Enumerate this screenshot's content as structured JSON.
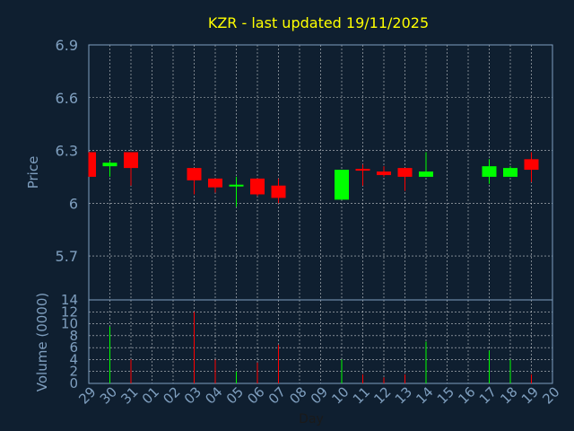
{
  "chart_data": {
    "type": "candlestick",
    "title": "KZR - last updated 19/11/2025",
    "xlabel": "Day",
    "colors": {
      "background": "#0f1f30",
      "text": "#7f9fbf",
      "title": "#ffff00",
      "up": "#00ff00",
      "down": "#ff0000",
      "grid": "#ffffff",
      "axis": "#7f9fbf"
    },
    "x_tick_labels": [
      "29",
      "30",
      "31",
      "01",
      "02",
      "03",
      "04",
      "05",
      "06",
      "07",
      "08",
      "09",
      "10",
      "11",
      "12",
      "13",
      "14",
      "15",
      "16",
      "17",
      "18",
      "19",
      "20"
    ],
    "price_panel": {
      "ylabel": "Price",
      "ylim": [
        5.45,
        6.9
      ],
      "y_ticks": [
        5.7,
        6.0,
        6.3,
        6.6,
        6.9
      ],
      "y_tick_labels": [
        "5.7",
        "6",
        "6.3",
        "6.6",
        "6.9"
      ],
      "grid": true,
      "candles": [
        {
          "day": "29",
          "open": 6.29,
          "high": 6.29,
          "low": 6.15,
          "close": 6.15
        },
        {
          "day": "30",
          "open": 6.21,
          "high": 6.24,
          "low": 6.15,
          "close": 6.23
        },
        {
          "day": "31",
          "open": 6.29,
          "high": 6.29,
          "low": 6.1,
          "close": 6.2
        },
        {
          "day": "03",
          "open": 6.2,
          "high": 6.2,
          "low": 6.05,
          "close": 6.13
        },
        {
          "day": "04",
          "open": 6.14,
          "high": 6.14,
          "low": 6.06,
          "close": 6.09
        },
        {
          "day": "05",
          "open": 6.1,
          "high": 6.15,
          "low": 5.98,
          "close": 6.1
        },
        {
          "day": "06",
          "open": 6.14,
          "high": 6.14,
          "low": 6.04,
          "close": 6.05
        },
        {
          "day": "07",
          "open": 6.1,
          "high": 6.14,
          "low": 6.0,
          "close": 6.03
        },
        {
          "day": "10",
          "open": 6.02,
          "high": 6.19,
          "low": 6.02,
          "close": 6.19
        },
        {
          "day": "11",
          "open": 6.19,
          "high": 6.22,
          "low": 6.1,
          "close": 6.18
        },
        {
          "day": "12",
          "open": 6.18,
          "high": 6.21,
          "low": 6.15,
          "close": 6.16
        },
        {
          "day": "13",
          "open": 6.2,
          "high": 6.2,
          "low": 6.07,
          "close": 6.15
        },
        {
          "day": "14",
          "open": 6.15,
          "high": 6.29,
          "low": 6.15,
          "close": 6.18
        },
        {
          "day": "17",
          "open": 6.15,
          "high": 6.25,
          "low": 6.11,
          "close": 6.21
        },
        {
          "day": "18",
          "open": 6.15,
          "high": 6.21,
          "low": 6.15,
          "close": 6.2
        },
        {
          "day": "19",
          "open": 6.25,
          "high": 6.29,
          "low": 6.12,
          "close": 6.19
        }
      ]
    },
    "volume_panel": {
      "ylabel": "Volume (0000)",
      "ylim": [
        0,
        14
      ],
      "y_ticks": [
        0,
        2,
        4,
        6,
        8,
        10,
        12,
        14
      ],
      "y_tick_labels": [
        "0",
        "2",
        "4",
        "6",
        "8",
        "10",
        "12",
        "14"
      ],
      "grid": true,
      "bars": [
        {
          "day": "30",
          "value": 9.5,
          "direction": "up"
        },
        {
          "day": "31",
          "value": 4.0,
          "direction": "down"
        },
        {
          "day": "03",
          "value": 12.0,
          "direction": "down"
        },
        {
          "day": "04",
          "value": 4.0,
          "direction": "down"
        },
        {
          "day": "05",
          "value": 2.0,
          "direction": "up"
        },
        {
          "day": "06",
          "value": 3.5,
          "direction": "down"
        },
        {
          "day": "07",
          "value": 6.5,
          "direction": "down"
        },
        {
          "day": "10",
          "value": 4.0,
          "direction": "up"
        },
        {
          "day": "11",
          "value": 1.5,
          "direction": "down"
        },
        {
          "day": "12",
          "value": 1.0,
          "direction": "down"
        },
        {
          "day": "13",
          "value": 1.5,
          "direction": "down"
        },
        {
          "day": "14",
          "value": 7.0,
          "direction": "up"
        },
        {
          "day": "17",
          "value": 5.5,
          "direction": "up"
        },
        {
          "day": "18",
          "value": 4.0,
          "direction": "up"
        },
        {
          "day": "19",
          "value": 1.5,
          "direction": "down"
        }
      ]
    }
  }
}
